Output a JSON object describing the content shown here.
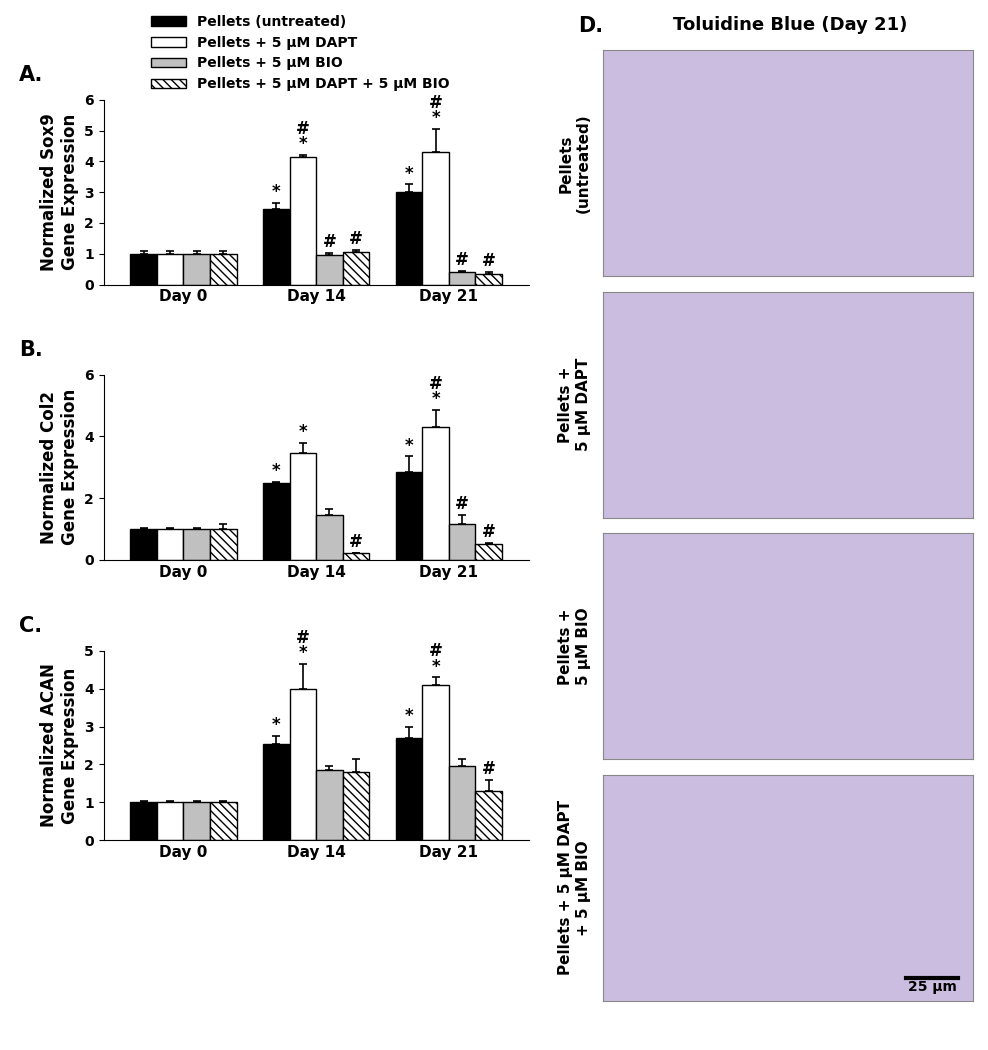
{
  "chart_data": [
    {
      "type": "bar",
      "panel": "A.",
      "y_label": "Normalized Sox9\nGene Expression",
      "categories": [
        "Day 0",
        "Day 14",
        "Day 21"
      ],
      "ylim": [
        0,
        6
      ],
      "yticks": [
        0,
        1,
        2,
        3,
        4,
        5,
        6
      ],
      "legend": "upper left",
      "series": [
        {
          "name": "Pellets (untreated)",
          "color": "#000000",
          "values": [
            1.0,
            2.45,
            3.0
          ],
          "errors": [
            0.1,
            0.2,
            0.25
          ],
          "significance": [
            [],
            [
              "*"
            ],
            [
              "*"
            ]
          ]
        },
        {
          "name": "Pellets + 5 μM DAPT",
          "color": "#ffffff",
          "values": [
            1.0,
            4.15,
            4.3
          ],
          "errors": [
            0.1,
            0.05,
            0.75
          ],
          "significance": [
            [],
            [
              "#",
              "*"
            ],
            [
              "#",
              "*"
            ]
          ]
        },
        {
          "name": "Pellets + 5 μM BIO",
          "color": "#c0c0c0",
          "values": [
            1.0,
            0.95,
            0.4
          ],
          "errors": [
            0.1,
            0.08,
            0.05
          ],
          "significance": [
            [],
            [
              "#"
            ],
            [
              "#"
            ]
          ]
        },
        {
          "name": "Pellets + 5 μM DAPT + 5 μM BIO",
          "color": "#ffffff",
          "values": [
            1.0,
            1.05,
            0.35
          ],
          "errors": [
            0.1,
            0.08,
            0.05
          ],
          "significance": [
            [],
            [
              "#"
            ],
            [
              "#"
            ]
          ]
        }
      ]
    },
    {
      "type": "bar",
      "panel": "B.",
      "y_label": "Normalized Col2\nGene Expression",
      "categories": [
        "Day 0",
        "Day 14",
        "Day 21"
      ],
      "ylim": [
        0,
        6
      ],
      "yticks": [
        0,
        2,
        4,
        6
      ],
      "series": [
        {
          "name": "Pellets (untreated)",
          "color": "#000000",
          "values": [
            1.0,
            2.5,
            2.85
          ],
          "errors": [
            0.03,
            0.03,
            0.5
          ],
          "significance": [
            [],
            [
              "*"
            ],
            [
              "*"
            ]
          ]
        },
        {
          "name": "Pellets + 5 μM DAPT",
          "color": "#ffffff",
          "values": [
            1.0,
            3.45,
            4.3
          ],
          "errors": [
            0.03,
            0.35,
            0.55
          ],
          "significance": [
            [],
            [
              "*"
            ],
            [
              "#",
              "*"
            ]
          ]
        },
        {
          "name": "Pellets + 5 μM BIO",
          "color": "#c0c0c0",
          "values": [
            1.0,
            1.45,
            1.15
          ],
          "errors": [
            0.03,
            0.2,
            0.3
          ],
          "significance": [
            [],
            [],
            [
              "#"
            ]
          ]
        },
        {
          "name": "Pellets + 5 μM DAPT + 5 μM BIO",
          "color": "#ffffff",
          "values": [
            1.0,
            0.2,
            0.5
          ],
          "errors": [
            0.15,
            0.03,
            0.05
          ],
          "significance": [
            [],
            [
              "#"
            ],
            [
              "#"
            ]
          ]
        }
      ]
    },
    {
      "type": "bar",
      "panel": "C.",
      "y_label": "Normalized ACAN\nGene Expression",
      "categories": [
        "Day 0",
        "Day 14",
        "Day 21"
      ],
      "ylim": [
        0,
        5
      ],
      "yticks": [
        0,
        1,
        2,
        3,
        4,
        5
      ],
      "series": [
        {
          "name": "Pellets (untreated)",
          "color": "#000000",
          "values": [
            1.0,
            2.55,
            2.7
          ],
          "errors": [
            0.03,
            0.2,
            0.3
          ],
          "significance": [
            [],
            [
              "*"
            ],
            [
              "*"
            ]
          ]
        },
        {
          "name": "Pellets + 5 μM DAPT",
          "color": "#ffffff",
          "values": [
            1.0,
            4.0,
            4.1
          ],
          "errors": [
            0.03,
            0.65,
            0.2
          ],
          "significance": [
            [],
            [
              "#",
              "*"
            ],
            [
              "#",
              "*"
            ]
          ]
        },
        {
          "name": "Pellets + 5 μM BIO",
          "color": "#c0c0c0",
          "values": [
            1.0,
            1.85,
            1.95
          ],
          "errors": [
            0.03,
            0.12,
            0.2
          ],
          "significance": [
            [],
            [],
            []
          ]
        },
        {
          "name": "Pellets + 5 μM DAPT + 5 μM BIO",
          "color": "#ffffff",
          "values": [
            1.0,
            1.8,
            1.3
          ],
          "errors": [
            0.03,
            0.35,
            0.3
          ],
          "significance": [
            [],
            [],
            [
              "#"
            ]
          ]
        }
      ]
    }
  ],
  "panel_d": {
    "label": "D.",
    "title": "Toluidine Blue (Day 21)",
    "rows": [
      "Pellets\n(untreated)",
      "Pellets +\n5 μM DAPT",
      "Pellets +\n5 μM BIO",
      "Pellets + 5 μM DAPT\n+ 5 μM BIO"
    ],
    "scale_bar": "25 μm"
  }
}
